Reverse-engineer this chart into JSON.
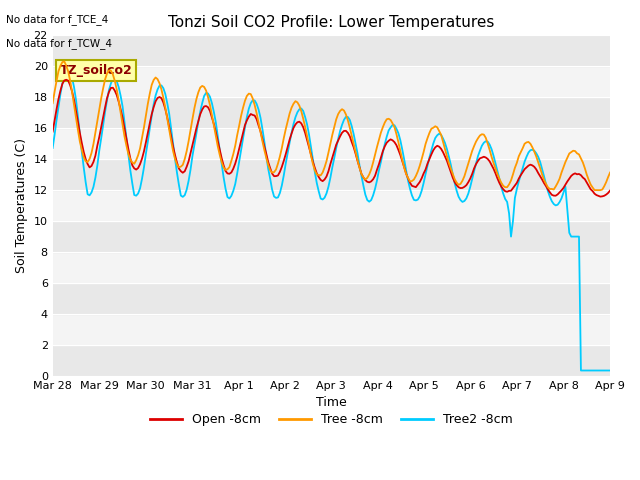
{
  "title": "Tonzi Soil CO2 Profile: Lower Temperatures",
  "xlabel": "Time",
  "ylabel": "Soil Temperatures (C)",
  "no_data_text": [
    "No data for f_TCE_4",
    "No data for f_TCW_4"
  ],
  "label_box_text": "TZ_soilco2",
  "legend_labels": [
    "Open -8cm",
    "Tree -8cm",
    "Tree2 -8cm"
  ],
  "legend_colors": [
    "#dd0000",
    "#ff9900",
    "#00ccff"
  ],
  "ylim": [
    0,
    22
  ],
  "yticks": [
    0,
    2,
    4,
    6,
    8,
    10,
    12,
    14,
    16,
    18,
    20,
    22
  ],
  "x_tick_labels": [
    "Mar 28",
    "Mar 29",
    "Mar 30",
    "Mar 31",
    "Apr 1",
    "Apr 2",
    "Apr 3",
    "Apr 4",
    "Apr 5",
    "Apr 6",
    "Apr 7",
    "Apr 8",
    "Apr 9"
  ],
  "fig_bg": "#ffffff",
  "plot_bg": "#ffffff",
  "band_color_dark": "#e8e8e8",
  "band_color_light": "#f4f4f4",
  "line_width": 1.3,
  "figsize": [
    6.4,
    4.8
  ],
  "dpi": 100
}
